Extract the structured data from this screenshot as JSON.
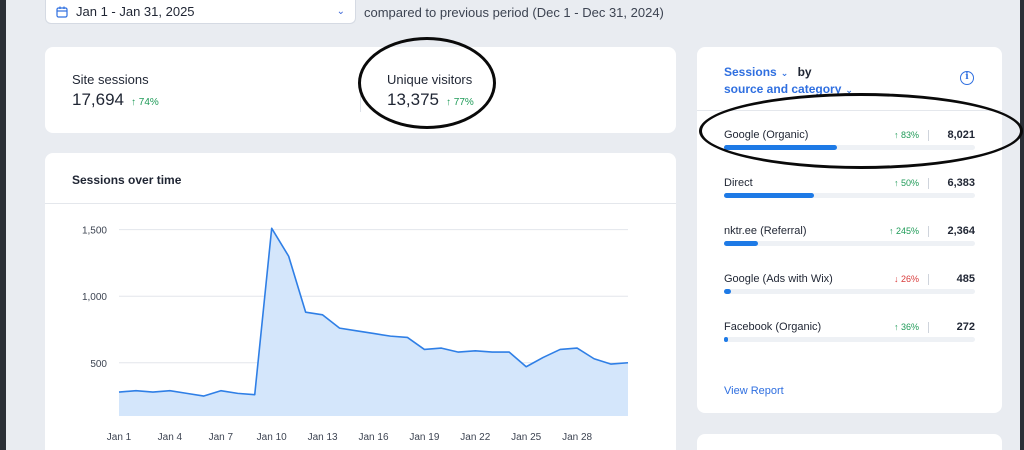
{
  "date_range": {
    "label": "Jan 1 - Jan 31, 2025",
    "compare_text": "compared to previous period (Dec 1 - Dec 31, 2024)"
  },
  "kpis": [
    {
      "label": "Site sessions",
      "value": "17,694",
      "change": "74%"
    },
    {
      "label": "Unique visitors",
      "value": "13,375",
      "change": "77%"
    }
  ],
  "sessions_chart": {
    "title": "Sessions over time"
  },
  "chart_data": {
    "type": "area",
    "title": "Sessions over time",
    "xlabel": "",
    "ylabel": "",
    "x_ticks": [
      "Jan 1",
      "Jan 4",
      "Jan 7",
      "Jan 10",
      "Jan 13",
      "Jan 16",
      "Jan 19",
      "Jan 22",
      "Jan 25",
      "Jan 28"
    ],
    "y_ticks": [
      500,
      1000,
      1500
    ],
    "ylim": [
      100,
      1700
    ],
    "color": "#2f7fe6",
    "fill": "#d4e6fb",
    "grid": true,
    "series": [
      {
        "x": [
          1,
          2,
          3,
          4,
          5,
          6,
          7,
          8,
          9,
          10,
          11,
          12,
          13,
          14,
          15,
          16,
          17,
          18,
          19,
          20,
          21,
          22,
          23,
          24,
          25,
          26,
          27,
          28,
          29,
          30,
          31
        ],
        "values": [
          280,
          290,
          280,
          290,
          270,
          250,
          290,
          270,
          260,
          1510,
          1300,
          880,
          860,
          760,
          740,
          720,
          700,
          690,
          600,
          610,
          580,
          590,
          580,
          580,
          470,
          540,
          600,
          610,
          530,
          490,
          500
        ]
      }
    ]
  },
  "sources": {
    "title_metric": "Sessions",
    "title_by": "by",
    "title_dimension": "source and category",
    "rows": [
      {
        "name": "Google (Organic)",
        "change": "83%",
        "direction": "up",
        "value": "8,021",
        "share": 0.45
      },
      {
        "name": "Direct",
        "change": "50%",
        "direction": "up",
        "value": "6,383",
        "share": 0.36
      },
      {
        "name": "nktr.ee (Referral)",
        "change": "245%",
        "direction": "up",
        "value": "2,364",
        "share": 0.135
      },
      {
        "name": "Google (Ads with Wix)",
        "change": "26%",
        "direction": "down",
        "value": "485",
        "share": 0.028
      },
      {
        "name": "Facebook (Organic)",
        "change": "36%",
        "direction": "up",
        "value": "272",
        "share": 0.016
      }
    ],
    "view_report": "View Report"
  },
  "icons": {
    "calendar": "calendar-icon",
    "chevron": "chevron-down-icon",
    "info": "info-icon",
    "arrow_up": "arrow-up-icon",
    "arrow_down": "arrow-down-icon"
  }
}
